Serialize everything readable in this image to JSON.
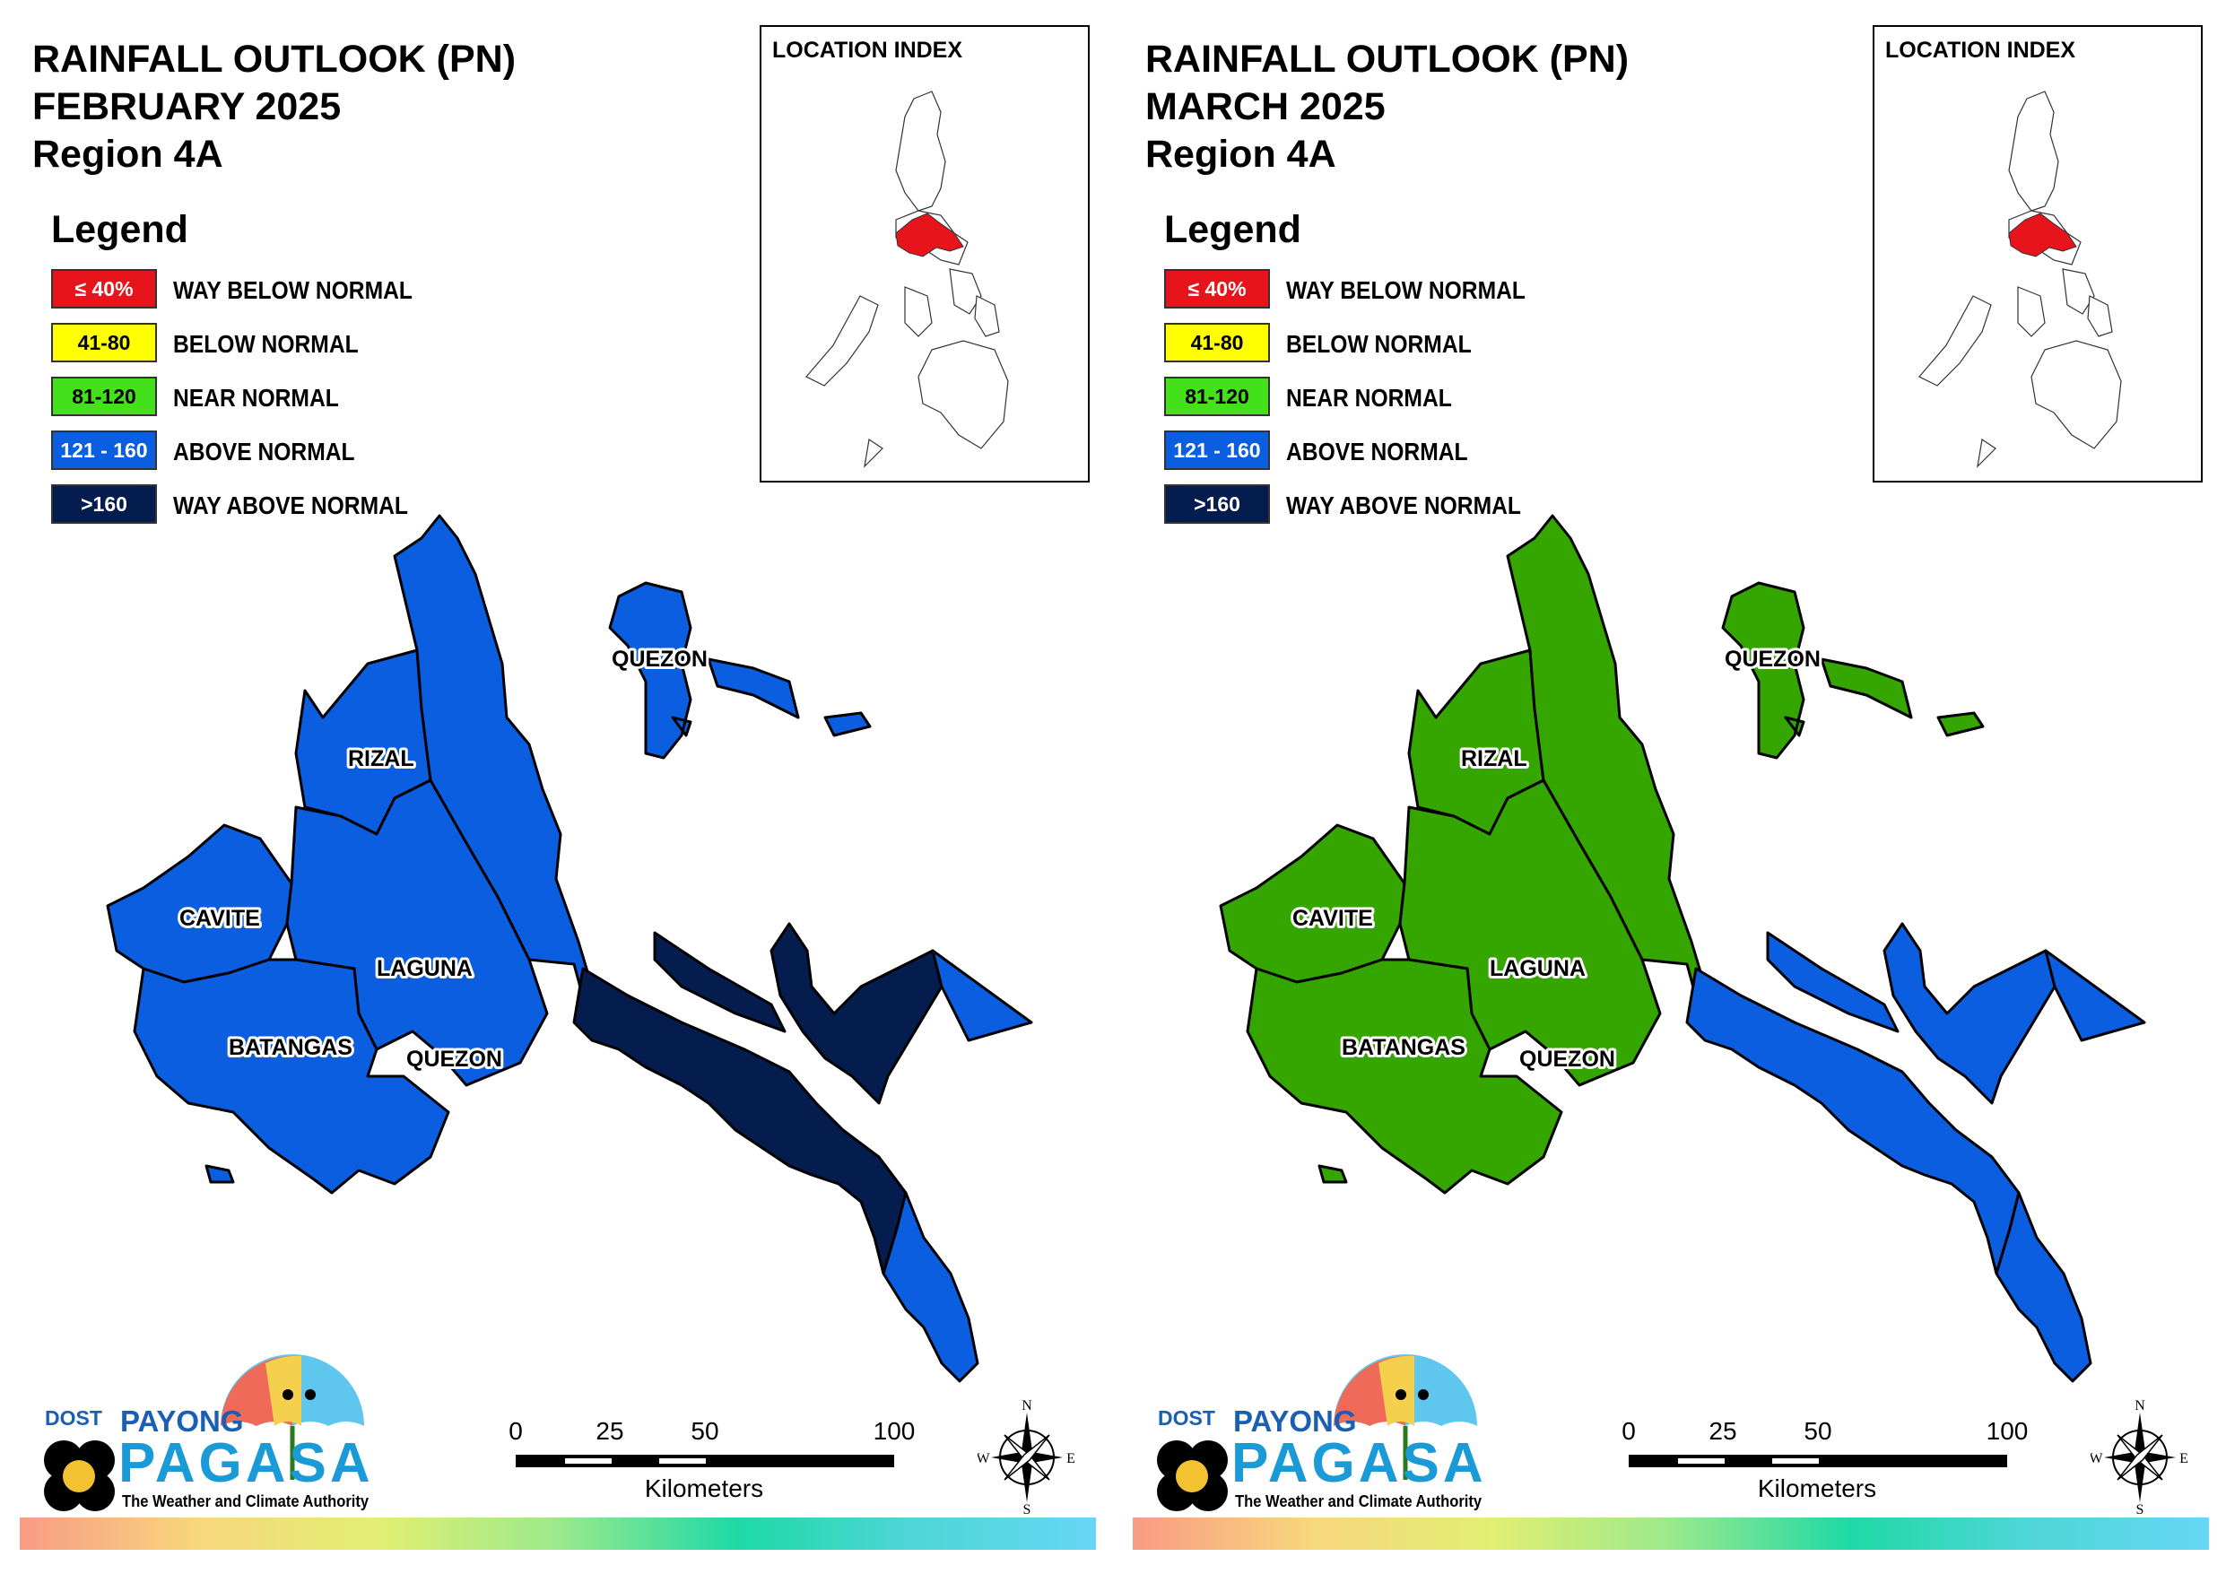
{
  "panels": [
    {
      "title_line1": "RAINFALL OUTLOOK (PN)",
      "title_line2": "FEBRUARY 2025",
      "title_line3": "Region 4A",
      "region_colors": {
        "cavite": "#0b5ee0",
        "batangas": "#0b5ee0",
        "laguna": "#0b5ee0",
        "rizal": "#0b5ee0",
        "quezon_north": "#0b5ee0",
        "quezon_middle": "#051c4f",
        "quezon_tip": "#0b5ee0",
        "quezon_islands": "#0b5ee0"
      }
    },
    {
      "title_line1": "RAINFALL OUTLOOK (PN)",
      "title_line2": "MARCH 2025",
      "title_line3": "Region 4A",
      "region_colors": {
        "cavite": "#35a500",
        "batangas": "#35a500",
        "laguna": "#35a500",
        "rizal": "#35a500",
        "quezon_north": "#35a500",
        "quezon_middle": "#0b5ee0",
        "quezon_tip": "#0b5ee0",
        "quezon_islands": "#35a500"
      }
    }
  ],
  "legend": {
    "title": "Legend",
    "items": [
      {
        "range": "≤ 40%",
        "label": "WAY BELOW NORMAL",
        "color": "#e8141b",
        "text_color": "#ffffff"
      },
      {
        "range": "41-80",
        "label": "BELOW NORMAL",
        "color": "#ffff00",
        "text_color": "#000000"
      },
      {
        "range": "81-120",
        "label": "NEAR NORMAL",
        "color": "#45e01c",
        "text_color": "#000000"
      },
      {
        "range": "121 - 160",
        "label": "ABOVE NORMAL",
        "color": "#0b5ee0",
        "text_color": "#ffffff"
      },
      {
        "range": ">160",
        "label": "WAY ABOVE NORMAL",
        "color": "#051c4f",
        "text_color": "#ffffff"
      }
    ]
  },
  "inset": {
    "title": "LOCATION INDEX",
    "highlight_color": "#e8141b"
  },
  "map_labels": {
    "quezon_top": "QUEZON",
    "rizal": "RIZAL",
    "cavite": "CAVITE",
    "laguna": "LAGUNA",
    "batangas": "BATANGAS",
    "quezon_bottom": "QUEZON"
  },
  "scale": {
    "ticks": [
      "0",
      "25",
      "50",
      "100"
    ],
    "unit": "Kilometers"
  },
  "compass": {
    "n": "N",
    "s": "S",
    "e": "E",
    "w": "W"
  },
  "logo": {
    "dost": "DOST",
    "payong": "PAYONG",
    "pagasa": "PAGASA",
    "tagline": "The Weather and Climate Authority"
  }
}
